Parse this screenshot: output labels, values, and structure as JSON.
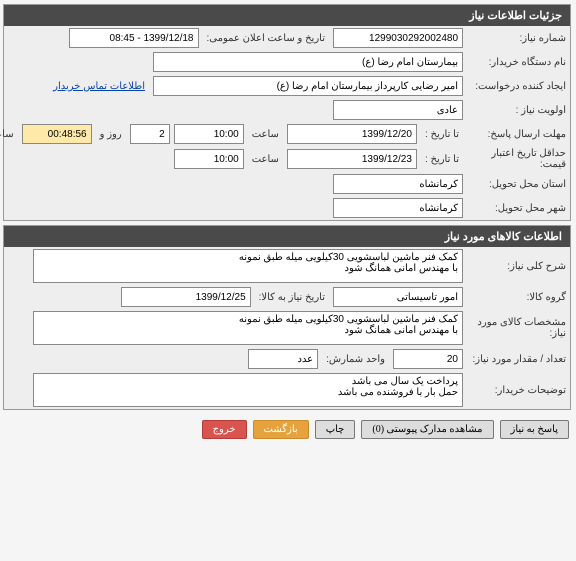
{
  "section1": {
    "title": "جزئیات اطلاعات نیاز",
    "need_number_label": "شماره نیاز:",
    "need_number": "1299030292002480",
    "public_time_label": "تاریخ و ساعت اعلان عمومی:",
    "public_time": "1399/12/18 - 08:45",
    "buyer_label": "نام دستگاه خریدار:",
    "buyer": "بیمارستان امام رضا (ع)",
    "requester_label": "ایجاد کننده درخواست:",
    "requester": "امیر رضایی کارپرداز بیمارستان امام رضا (ع)",
    "contact_link": "اطلاعات تماس خریدار",
    "priority_label": "اولویت نیاز :",
    "priority": "عادی",
    "deadline_label": "مهلت ارسال پاسخ:",
    "to_date_label": "تا تاریخ :",
    "deadline_date": "1399/12/20",
    "time_label": "ساعت",
    "deadline_time": "10:00",
    "day_label": "روز و",
    "days_left": "2",
    "hours_left": "00:48:56",
    "remain_label": "ساعت باقی مانده",
    "validity_label": "حداقل تاریخ اعتبار قیمت:",
    "validity_date": "1399/12/23",
    "validity_time": "10:00",
    "province_label": "استان محل تحویل:",
    "province": "کرمانشاه",
    "city_label": "شهر محل تحویل:",
    "city": "کرمانشاه"
  },
  "section2": {
    "title": "اطلاعات کالاهای مورد نیاز",
    "gen_desc_label": "شرح کلی نیاز:",
    "gen_desc": "کمک فنر ماشین لباسشویی 30کیلویی میله طبق نمونه\nبا مهندس امانی همانگ شود",
    "group_label": "گروه کالا:",
    "group": "امور تاسیساتی",
    "need_date_label": "تاریخ نیاز به کالا:",
    "need_date": "1399/12/25",
    "spec_label": "مشخصات کالای مورد نیاز:",
    "spec": "کمک فنر ماشین لباسشویی 30کیلویی میله طبق نمونه\nبا مهندس امانی همانگ شود",
    "qty_label": "تعداد / مقدار مورد نیاز:",
    "qty": "20",
    "unit_label": "واحد شمارش:",
    "unit": "عدد",
    "notes_label": "توضیحات خریدار:",
    "notes": "پرداخت یک سال می باشد\nحمل بار با فروشنده می باشد"
  },
  "buttons": {
    "reply": "پاسخ به نیاز",
    "attach": "مشاهده مدارک پیوستی (0)",
    "print": "چاپ",
    "back": "بازگشت",
    "exit": "خروج"
  }
}
